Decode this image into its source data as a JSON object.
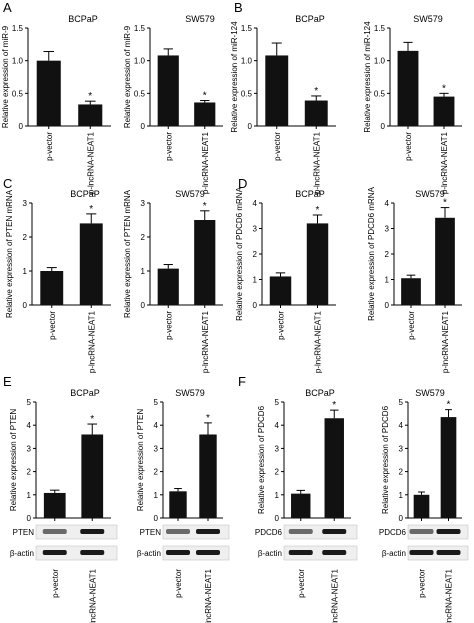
{
  "figure": {
    "panel_letters": [
      "A",
      "B",
      "C",
      "D",
      "E",
      "F"
    ]
  },
  "chart_data": [
    {
      "type": "bar",
      "panel": "A",
      "title": "BCPaP",
      "ylabel": "Relative expression of miR-9",
      "categories": [
        "p-vector",
        "p-lncRNA-NEAT1"
      ],
      "values": [
        1.0,
        0.33
      ],
      "errors": [
        0.14,
        0.05
      ],
      "ylim": [
        0,
        1.5
      ],
      "yticks": [
        "0",
        "0.5",
        "1.0",
        "1.5"
      ],
      "annotations": [
        "",
        "*"
      ]
    },
    {
      "type": "bar",
      "panel": "A",
      "title": "SW579",
      "ylabel": "Relative expression of miR-9",
      "categories": [
        "p-vector",
        "p-lncRNA-NEAT1"
      ],
      "values": [
        1.08,
        0.36
      ],
      "errors": [
        0.1,
        0.03
      ],
      "ylim": [
        0,
        1.5
      ],
      "yticks": [
        "0",
        "0.5",
        "1.0",
        "1.5"
      ],
      "annotations": [
        "",
        "*"
      ]
    },
    {
      "type": "bar",
      "panel": "B",
      "title": "BCPaP",
      "ylabel": "Relative expression of miR-124",
      "categories": [
        "p-vector",
        "p-lncRNA-NEAT1"
      ],
      "values": [
        1.08,
        0.39
      ],
      "errors": [
        0.19,
        0.07
      ],
      "ylim": [
        0,
        1.5
      ],
      "yticks": [
        "0",
        "0.5",
        "1.0",
        "1.5"
      ],
      "annotations": [
        "",
        "*"
      ]
    },
    {
      "type": "bar",
      "panel": "B",
      "title": "SW579",
      "ylabel": "Relative expression of miR-124",
      "categories": [
        "p-vector",
        "p-lncRNA-NEAT1"
      ],
      "values": [
        1.15,
        0.45
      ],
      "errors": [
        0.13,
        0.05
      ],
      "ylim": [
        0,
        1.5
      ],
      "yticks": [
        "0",
        "0.5",
        "1.0",
        "1.5"
      ],
      "annotations": [
        "",
        "*"
      ]
    },
    {
      "type": "bar",
      "panel": "C",
      "title": "BCPaP",
      "ylabel": "Relative expression of PTEN mRNA",
      "categories": [
        "p-vector",
        "p-lncRNA-NEAT1"
      ],
      "values": [
        1.0,
        2.4
      ],
      "errors": [
        0.1,
        0.28
      ],
      "ylim": [
        0,
        3
      ],
      "yticks": [
        "0",
        "1",
        "2",
        "3"
      ],
      "annotations": [
        "",
        "*"
      ]
    },
    {
      "type": "bar",
      "panel": "C",
      "title": "SW579",
      "ylabel": "Relative expression of PTEN mRNA",
      "categories": [
        "p-vector",
        "p-lncRNA-NEAT1"
      ],
      "values": [
        1.07,
        2.5
      ],
      "errors": [
        0.12,
        0.27
      ],
      "ylim": [
        0,
        3
      ],
      "yticks": [
        "0",
        "1",
        "2",
        "3"
      ],
      "annotations": [
        "",
        "*"
      ]
    },
    {
      "type": "bar",
      "panel": "D",
      "title": "BCPaP",
      "ylabel": "Relative expression of PDCD6 mRNA",
      "categories": [
        "p-vector",
        "p-lncRNA-NEAT1"
      ],
      "values": [
        1.12,
        3.2
      ],
      "errors": [
        0.14,
        0.33
      ],
      "ylim": [
        0,
        4
      ],
      "yticks": [
        "0",
        "1",
        "2",
        "3",
        "4"
      ],
      "annotations": [
        "",
        "*"
      ]
    },
    {
      "type": "bar",
      "panel": "D",
      "title": "SW579",
      "ylabel": "Relative expression of PDCD6 mRNA",
      "categories": [
        "p-vector",
        "p-lncRNA-NEAT1"
      ],
      "values": [
        1.05,
        3.42
      ],
      "errors": [
        0.12,
        0.4
      ],
      "ylim": [
        0,
        4
      ],
      "yticks": [
        "0",
        "1",
        "2",
        "3",
        "4"
      ],
      "annotations": [
        "",
        "*"
      ]
    },
    {
      "type": "bar",
      "panel": "E",
      "title": "BCPaP",
      "ylabel": "Relative expression of PTEN",
      "categories": [
        "p-vector",
        "p-lncRNA-NEAT1"
      ],
      "values": [
        1.08,
        3.6
      ],
      "errors": [
        0.12,
        0.45
      ],
      "ylim": [
        0,
        5
      ],
      "yticks": [
        "0",
        "1",
        "2",
        "3",
        "4",
        "5"
      ],
      "annotations": [
        "",
        "*"
      ],
      "blots": [
        "PTEN",
        "β-actin"
      ]
    },
    {
      "type": "bar",
      "panel": "E",
      "title": "SW579",
      "ylabel": "Relative expression of PTEN",
      "categories": [
        "p-vector",
        "p-lncRNA-NEAT1"
      ],
      "values": [
        1.15,
        3.6
      ],
      "errors": [
        0.12,
        0.5
      ],
      "ylim": [
        0,
        5
      ],
      "yticks": [
        "0",
        "1",
        "2",
        "3",
        "4",
        "5"
      ],
      "annotations": [
        "",
        "*"
      ],
      "blots": [
        "PTEN",
        "β-actin"
      ]
    },
    {
      "type": "bar",
      "panel": "F",
      "title": "BCPaP",
      "ylabel": "Relative expression of PDCD6",
      "categories": [
        "p-vector",
        "p-lncRNA-NEAT1"
      ],
      "values": [
        1.05,
        4.3
      ],
      "errors": [
        0.14,
        0.35
      ],
      "ylim": [
        0,
        5
      ],
      "yticks": [
        "0",
        "1",
        "2",
        "3",
        "4",
        "5"
      ],
      "annotations": [
        "",
        "*"
      ],
      "blots": [
        "PDCD6",
        "β-actin"
      ]
    },
    {
      "type": "bar",
      "panel": "F",
      "title": "SW579",
      "ylabel": "Relative expression of PDCD6",
      "categories": [
        "p-vector",
        "p-lncRNA-NEAT1"
      ],
      "values": [
        1.0,
        4.35
      ],
      "errors": [
        0.12,
        0.32
      ],
      "ylim": [
        0,
        5
      ],
      "yticks": [
        "0",
        "1",
        "2",
        "3",
        "4",
        "5"
      ],
      "annotations": [
        "",
        "*"
      ],
      "blots": [
        "PDCD6",
        "β-actin"
      ]
    }
  ]
}
